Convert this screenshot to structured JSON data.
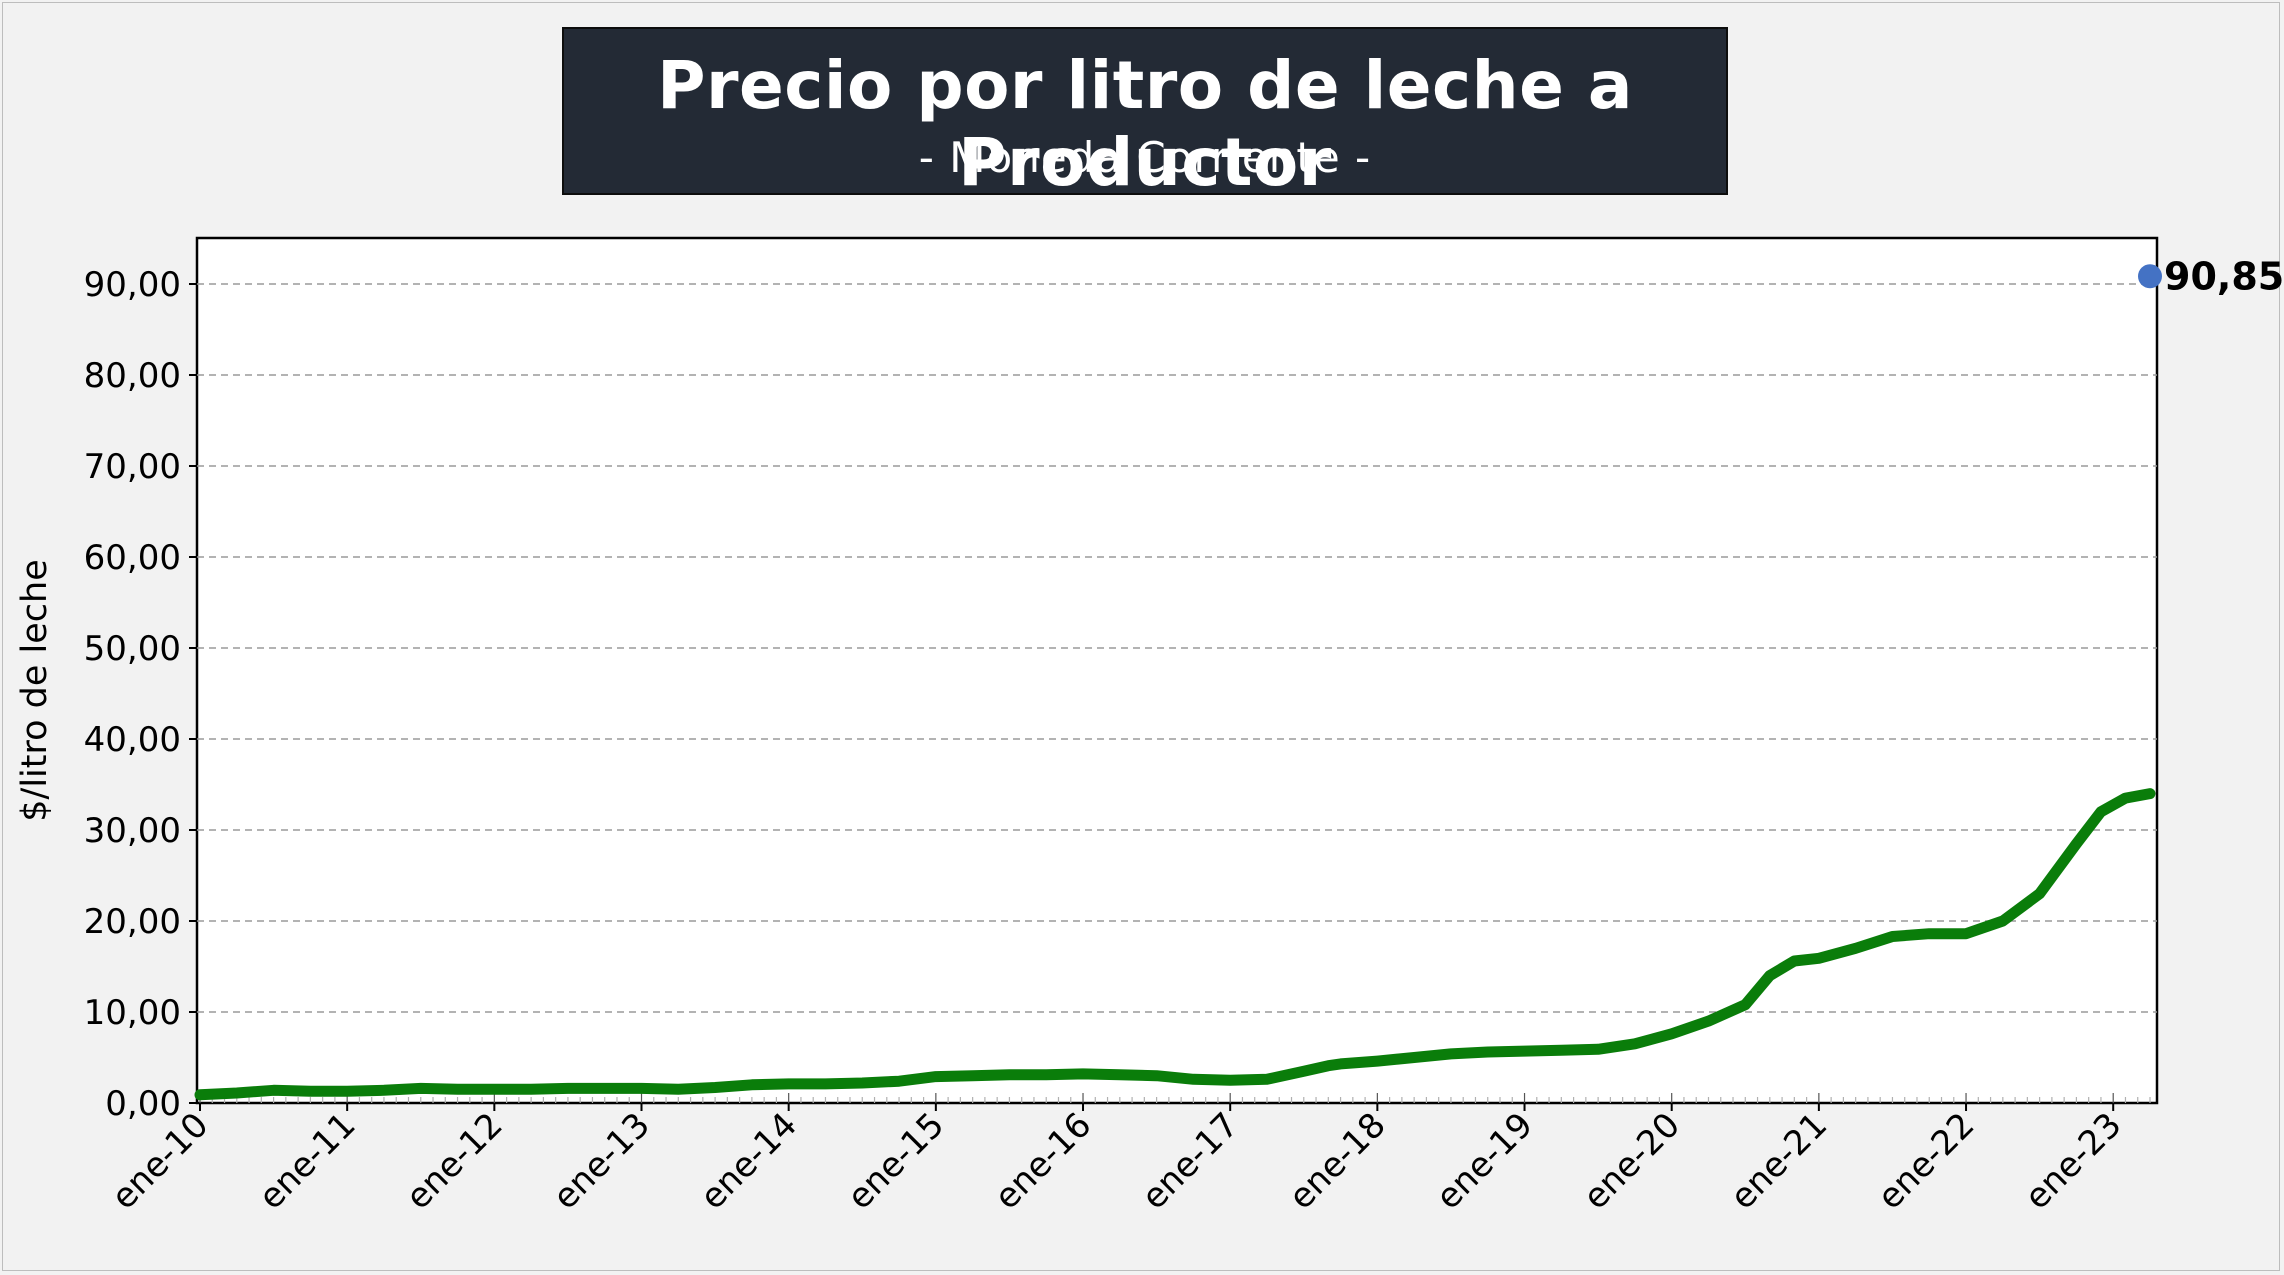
{
  "chart_data": {
    "type": "line",
    "title": "Precio por litro de leche a Productor",
    "subtitle": "- Moneda Corriente -",
    "ylabel": "$/litro de leche",
    "xlabel": "",
    "ylim": [
      0,
      95
    ],
    "yticks": [
      "0,00",
      "10,00",
      "20,00",
      "30,00",
      "40,00",
      "50,00",
      "60,00",
      "70,00",
      "80,00",
      "90,00"
    ],
    "ytick_values": [
      0,
      10,
      20,
      30,
      40,
      50,
      60,
      70,
      80,
      90
    ],
    "xticks": [
      "ene-10",
      "ene-11",
      "ene-12",
      "ene-13",
      "ene-14",
      "ene-15",
      "ene-16",
      "ene-17",
      "ene-18",
      "ene-19",
      "ene-20",
      "ene-21",
      "ene-22",
      "ene-23"
    ],
    "grid": "horizontal dashed",
    "x_start": "ene-10",
    "x_end": "abr-23",
    "series": [
      {
        "color": "#0a7d0a",
        "points": [
          [
            "2010-01",
            0.9
          ],
          [
            "2010-04",
            1.1
          ],
          [
            "2010-07",
            1.4
          ],
          [
            "2010-10",
            1.3
          ],
          [
            "2011-01",
            1.3
          ],
          [
            "2011-04",
            1.4
          ],
          [
            "2011-07",
            1.6
          ],
          [
            "2011-10",
            1.5
          ],
          [
            "2012-01",
            1.5
          ],
          [
            "2012-04",
            1.5
          ],
          [
            "2012-07",
            1.6
          ],
          [
            "2012-10",
            1.6
          ],
          [
            "2013-01",
            1.6
          ],
          [
            "2013-04",
            1.5
          ],
          [
            "2013-07",
            1.7
          ],
          [
            "2013-10",
            2.0
          ],
          [
            "2014-01",
            2.1
          ],
          [
            "2014-04",
            2.1
          ],
          [
            "2014-07",
            2.2
          ],
          [
            "2014-10",
            2.4
          ],
          [
            "2015-01",
            2.9
          ],
          [
            "2015-04",
            3.0
          ],
          [
            "2015-07",
            3.1
          ],
          [
            "2015-10",
            3.1
          ],
          [
            "2016-01",
            3.2
          ],
          [
            "2016-04",
            3.1
          ],
          [
            "2016-07",
            3.0
          ],
          [
            "2016-10",
            2.6
          ],
          [
            "2017-01",
            2.5
          ],
          [
            "2017-04",
            2.6
          ],
          [
            "2017-07",
            3.5
          ],
          [
            "2017-09",
            4.1
          ],
          [
            "2017-10",
            4.3
          ],
          [
            "2018-01",
            4.6
          ],
          [
            "2018-04",
            5.0
          ],
          [
            "2018-07",
            5.4
          ],
          [
            "2018-10",
            5.6
          ],
          [
            "2019-01",
            5.7
          ],
          [
            "2019-04",
            5.8
          ],
          [
            "2019-07",
            5.9
          ],
          [
            "2019-10",
            6.5
          ],
          [
            "2020-01",
            7.6
          ],
          [
            "2020-04",
            9.0
          ],
          [
            "2020-07",
            10.8
          ],
          [
            "2020-09",
            14.0
          ],
          [
            "2020-11",
            15.6
          ],
          [
            "2021-01",
            15.9
          ],
          [
            "2021-04",
            17.0
          ],
          [
            "2021-07",
            18.3
          ],
          [
            "2021-10",
            18.6
          ],
          [
            "2022-01",
            18.6
          ],
          [
            "2022-04",
            20.0
          ],
          [
            "2022-07",
            23.0
          ],
          [
            "2022-10",
            28.5
          ],
          [
            "2022-12",
            32.0
          ],
          [
            "2023-02",
            33.5
          ],
          [
            "2023-04",
            34.0
          ]
        ]
      }
    ],
    "end_marker": {
      "color": "#4472c4",
      "value": 90.85,
      "label": "90,85"
    }
  }
}
